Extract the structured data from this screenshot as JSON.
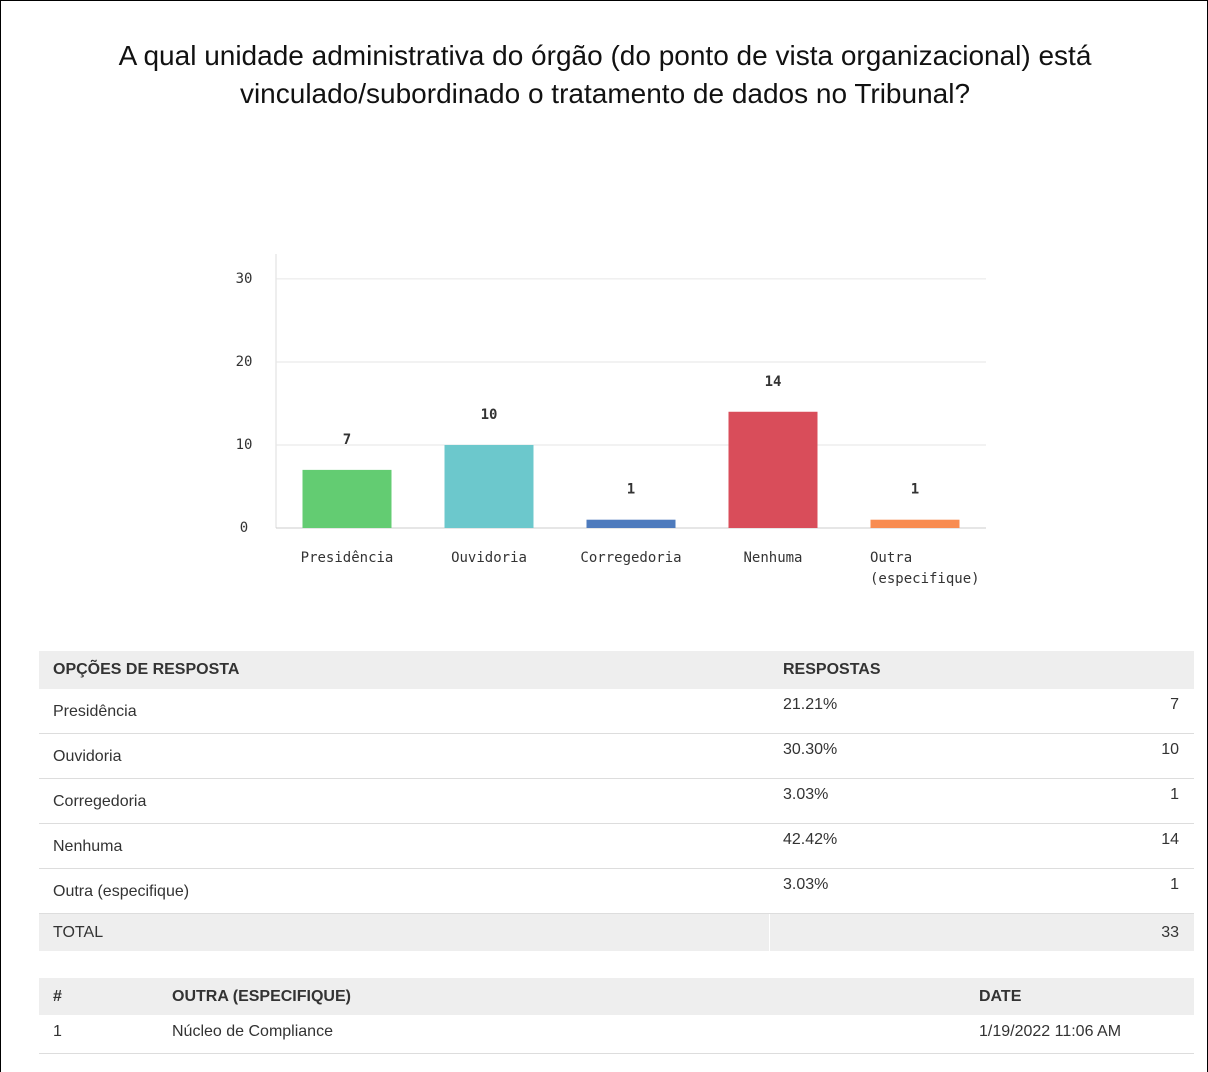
{
  "chart_data": {
    "type": "bar",
    "title": "A qual unidade administrativa do órgão (do ponto de vista organizacional) está vinculado/subordinado o tratamento de dados no Tribunal?",
    "categories": [
      "Presidência",
      "Ouvidoria",
      "Corregedoria",
      "Nenhuma",
      "Outra (especifique)"
    ],
    "values": [
      7,
      10,
      1,
      14,
      1
    ],
    "colors": [
      "#63cc72",
      "#6cc8cc",
      "#4e7bbd",
      "#d94d5a",
      "#f88c51"
    ],
    "ylim": [
      0,
      33
    ],
    "yticks": [
      0,
      10,
      20,
      30
    ],
    "grid": true
  },
  "responses_table": {
    "headers": [
      "OPÇÕES DE RESPOSTA",
      "RESPOSTAS"
    ],
    "rows": [
      [
        "Presidência",
        "21.21%",
        "7"
      ],
      [
        "Ouvidoria",
        "30.30%",
        "10"
      ],
      [
        "Corregedoria",
        "3.03%",
        "1"
      ],
      [
        "Nenhuma",
        "42.42%",
        "14"
      ],
      [
        "Outra (especifique)",
        "3.03%",
        "1"
      ]
    ],
    "total": [
      "TOTAL",
      "33"
    ]
  },
  "other_table": {
    "headers": [
      "#",
      "OUTRA (ESPECIFIQUE)",
      "DATE"
    ],
    "rows": [
      [
        "1",
        "Núcleo de Compliance",
        "1/19/2022 11:06 AM"
      ]
    ]
  }
}
